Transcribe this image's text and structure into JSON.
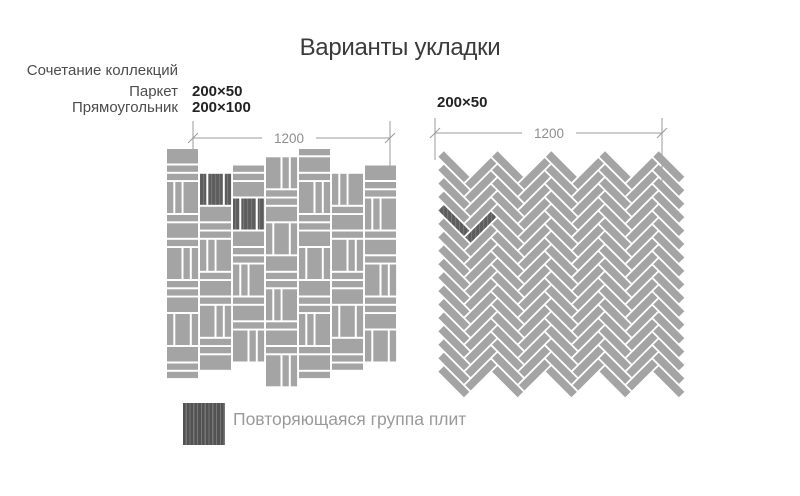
{
  "title": "Варианты укладки",
  "collections": {
    "heading": "Сочетание коллекций",
    "rows": [
      {
        "name": "Паркет",
        "size": "200×50"
      },
      {
        "name": "Прямоугольник",
        "size": "200×100"
      }
    ]
  },
  "patterns": [
    {
      "type": "basketweave",
      "tile_sizes": [
        "200×50",
        "200×100"
      ],
      "dimension_label": "1200"
    },
    {
      "type": "herringbone",
      "tile_sizes": [
        "200×50"
      ],
      "size_label": "200×50",
      "dimension_label": "1200"
    }
  ],
  "legend": {
    "label": "Повторяющаяся группа плит"
  },
  "colors": {
    "tile": "#a4a4a4",
    "tile_dark": "#5d5d5d",
    "tile_dark_line": "#787878",
    "grout": "#ffffff",
    "dimension": "#9b9b9b",
    "text_muted": "#9a9a9a"
  }
}
